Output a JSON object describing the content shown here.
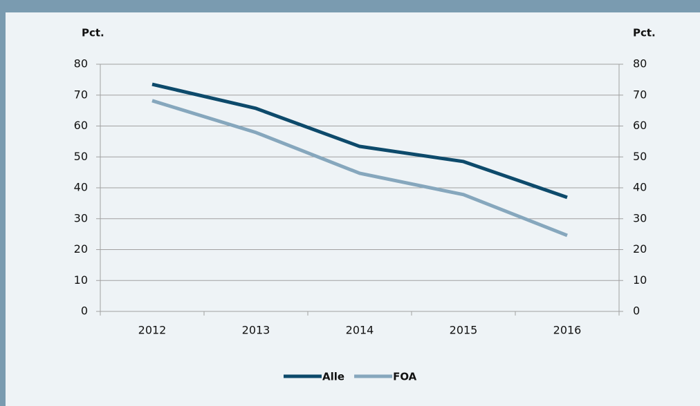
{
  "chart_data": {
    "type": "line",
    "ylabel": "Pct.",
    "y2label": "Pct.",
    "categories": [
      "2012",
      "2013",
      "2014",
      "2015",
      "2016"
    ],
    "series": [
      {
        "name": "Alle",
        "color": "#0d4a6b",
        "values": [
          73.5,
          65.7,
          53.4,
          48.5,
          36.9
        ]
      },
      {
        "name": "FOA",
        "color": "#86a7bd",
        "values": [
          68.2,
          57.9,
          44.7,
          37.8,
          24.6
        ]
      }
    ],
    "ylim": [
      0,
      80
    ],
    "yticks": [
      0,
      10,
      20,
      30,
      40,
      50,
      60,
      70,
      80
    ],
    "y2lim": [
      0,
      80
    ],
    "y2ticks": [
      0,
      10,
      20,
      30,
      40,
      50,
      60,
      70,
      80
    ],
    "grid": true,
    "legend": "bottom"
  }
}
